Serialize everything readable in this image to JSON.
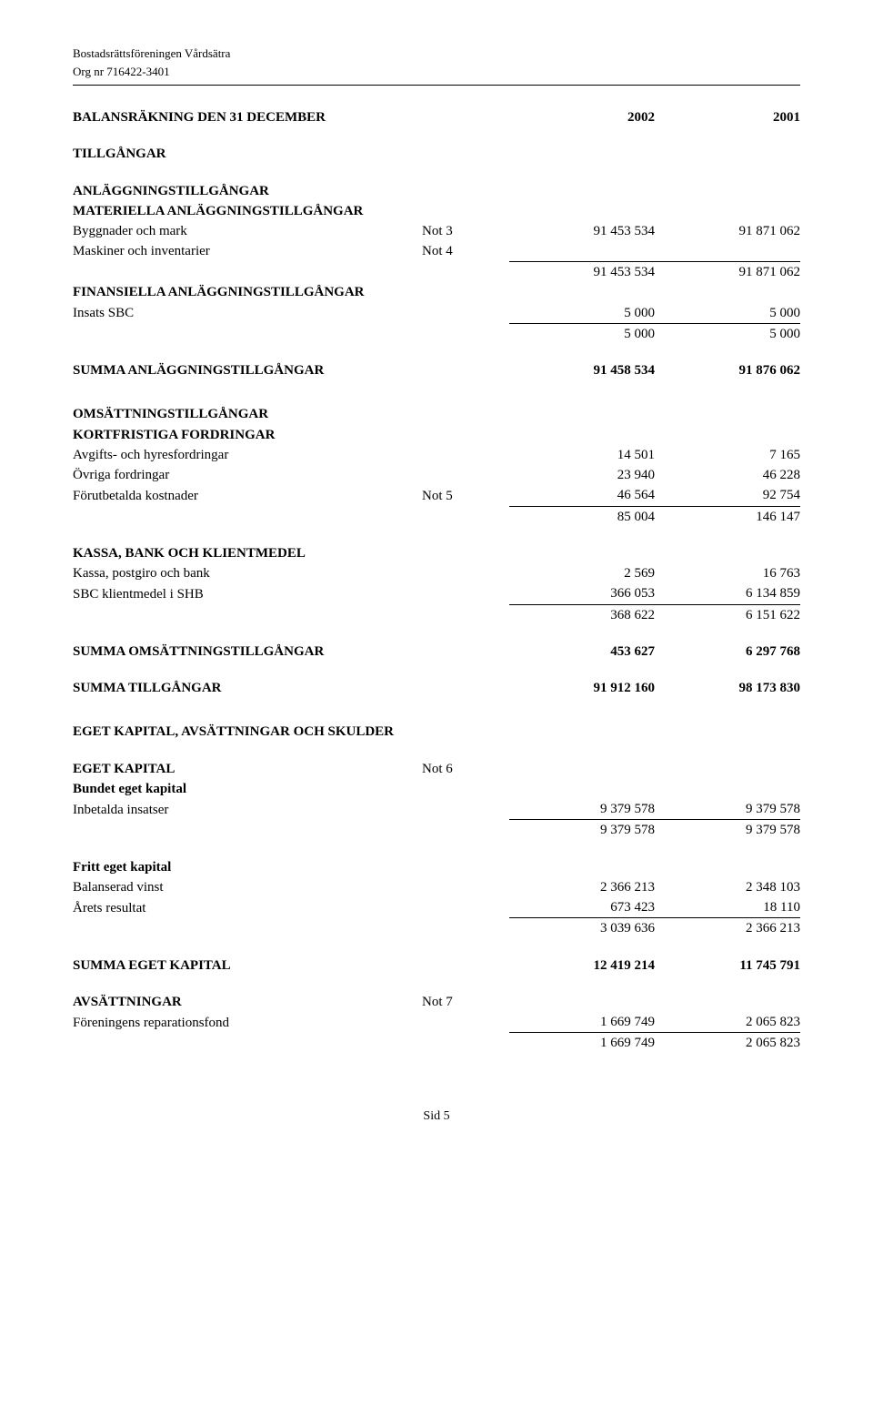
{
  "hdr": {
    "org_name": "Bostadsrättsföreningen Vårdsätra",
    "org_nr": "Org nr 716422-3401"
  },
  "title_line": {
    "label": "BALANSRÄKNING DEN 31 DECEMBER",
    "y1": "2002",
    "y2": "2001"
  },
  "sec": {
    "tillgangar": "TILLGÅNGAR",
    "anlaggning": "ANLÄGGNINGSTILLGÅNGAR",
    "materiella": "MATERIELLA ANLÄGGNINGSTILLGÅNGAR",
    "finansiella": "FINANSIELLA ANLÄGGNINGSTILLGÅNGAR",
    "summa_anl": "SUMMA ANLÄGGNINGSTILLGÅNGAR",
    "omsattning": "OMSÄTTNINGSTILLGÅNGAR",
    "kortfristiga": "KORTFRISTIGA FORDRINGAR",
    "kassa": "KASSA, BANK OCH KLIENTMEDEL",
    "summa_oms": "SUMMA OMSÄTTNINGSTILLGÅNGAR",
    "summa_till": "SUMMA TILLGÅNGAR",
    "egetk_sk": "EGET KAPITAL, AVSÄTTNINGAR OCH SKULDER",
    "egetk": "EGET KAPITAL",
    "bundet": "Bundet eget kapital",
    "fritt": "Fritt eget kapital",
    "summa_ek": "SUMMA EGET KAPITAL",
    "avs": "AVSÄTTNINGAR"
  },
  "rows": {
    "byggnader": {
      "label": "Byggnader och mark",
      "note": "Not 3",
      "v1": "91 453 534",
      "v2": "91 871 062"
    },
    "maskiner": {
      "label": "Maskiner och inventarier",
      "note": "Not 4"
    },
    "mat_sum": {
      "v1": "91 453 534",
      "v2": "91 871 062"
    },
    "insats": {
      "label": "Insats SBC",
      "v1": "5 000",
      "v2": "5 000"
    },
    "fin_sum": {
      "v1": "5 000",
      "v2": "5 000"
    },
    "sum_anl": {
      "v1": "91 458 534",
      "v2": "91 876 062"
    },
    "avgifts": {
      "label": "Avgifts- och hyresfordringar",
      "v1": "14 501",
      "v2": "7 165"
    },
    "ovriga": {
      "label": "Övriga fordringar",
      "v1": "23 940",
      "v2": "46 228"
    },
    "forut": {
      "label": "Förutbetalda kostnader",
      "note": "Not 5",
      "v1": "46 564",
      "v2": "92 754"
    },
    "kort_sum": {
      "v1": "85 004",
      "v2": "146 147"
    },
    "kassa": {
      "label": "Kassa, postgiro och bank",
      "v1": "2 569",
      "v2": "16 763"
    },
    "sbc": {
      "label": "SBC klientmedel i SHB",
      "v1": "366 053",
      "v2": "6 134 859"
    },
    "kassa_sum": {
      "v1": "368 622",
      "v2": "6 151 622"
    },
    "sum_oms": {
      "v1": "453 627",
      "v2": "6 297 768"
    },
    "sum_till": {
      "v1": "91 912 160",
      "v2": "98 173 830"
    },
    "ek_note": {
      "note": "Not 6"
    },
    "inbet": {
      "label": "Inbetalda insatser",
      "v1": "9 379 578",
      "v2": "9 379 578"
    },
    "bundet_sum": {
      "v1": "9 379 578",
      "v2": "9 379 578"
    },
    "balanserad": {
      "label": "Balanserad vinst",
      "v1": "2 366 213",
      "v2": "2 348 103"
    },
    "arets": {
      "label": "Årets resultat",
      "v1": "673 423",
      "v2": "18 110"
    },
    "fritt_sum": {
      "v1": "3 039 636",
      "v2": "2 366 213"
    },
    "sum_ek": {
      "v1": "12 419 214",
      "v2": "11 745 791"
    },
    "avs_note": {
      "note": "Not 7"
    },
    "repfond": {
      "label": "Föreningens reparationsfond",
      "v1": "1 669 749",
      "v2": "2 065 823"
    },
    "avs_sum": {
      "v1": "1 669 749",
      "v2": "2 065 823"
    }
  },
  "footer": "Sid 5"
}
